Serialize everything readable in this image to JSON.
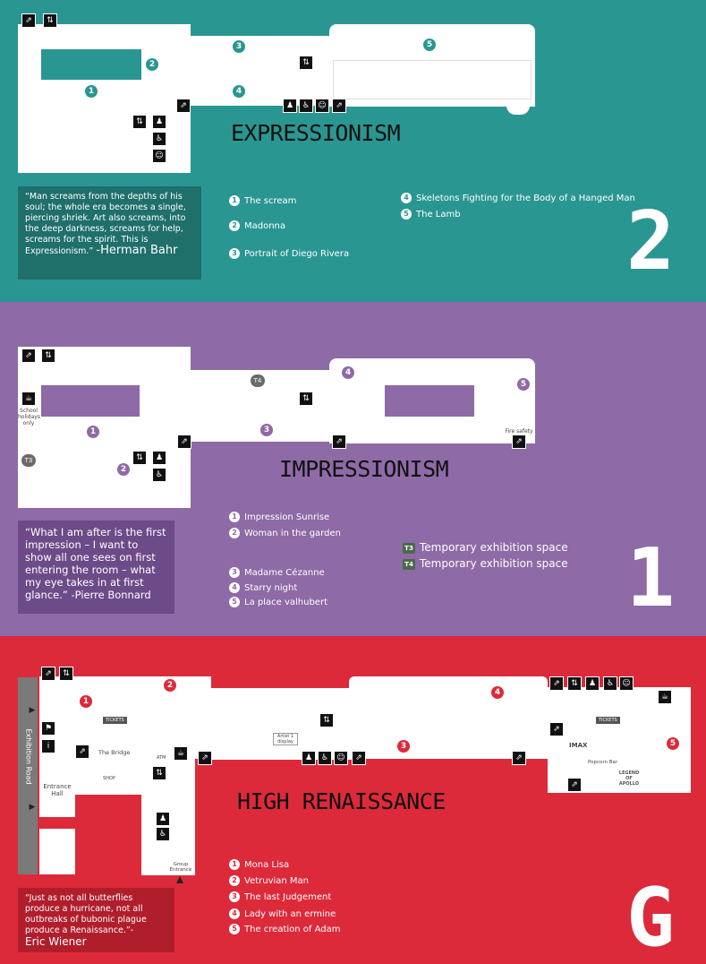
{
  "colors": {
    "teal": "#2a9691",
    "purple": "#8e6aa6",
    "red": "#dc2a3a"
  },
  "floor2": {
    "title": "EXPRESSIONISM",
    "label": "2",
    "quote": "“Man screams from the depths of his soul; the whole era becomes a single, piercing shriek. Art also screams, into the deep darkness, screams for help, screams for the spirit. This is Expressionism.”",
    "quote_author": "-Herman Bahr",
    "artworks": [
      {
        "num": "1",
        "title": "The scream"
      },
      {
        "num": "2",
        "title": "Madonna"
      },
      {
        "num": "3",
        "title": "Portrait of Diego Rivera"
      },
      {
        "num": "4",
        "title": "Skeletons Fighting for the Body of a Hanged Man"
      },
      {
        "num": "5",
        "title": "The Lamb"
      }
    ]
  },
  "floor1": {
    "title": "IMPRESSIONISM",
    "label": "1",
    "quote": "“What I am after is the first impression – I want to show all one sees on first entering the room – what my eye takes in at first glance.” -Pierre Bonnard",
    "artworks": [
      {
        "num": "1",
        "title": "Impression Sunrise"
      },
      {
        "num": "2",
        "title": "Woman in the garden"
      },
      {
        "num": "3",
        "title": "Madame Cézanne"
      },
      {
        "num": "4",
        "title": "Starry night"
      },
      {
        "num": "5",
        "title": "La place valhubert"
      }
    ],
    "temporary": [
      {
        "code": "T3",
        "title": "Temporary exhibition space"
      },
      {
        "code": "T4",
        "title": "Temporary exhibition space"
      }
    ],
    "school_note": "School holidays only",
    "fire_note": "Fire safety"
  },
  "floorG": {
    "title": "HIGH RENAISSANCE",
    "label": "G",
    "quote": "“Just as not all butterflies produce a hurricane, not all outbreaks of bubonic plague produce a Renaissance.”-",
    "quote_author": "Eric Wiener",
    "artworks": [
      {
        "num": "1",
        "title": "Mona Lisa"
      },
      {
        "num": "2",
        "title": "Vetruvian Man"
      },
      {
        "num": "3",
        "title": "The last Judgement"
      },
      {
        "num": "4",
        "title": "Lady with an ermine"
      },
      {
        "num": "5",
        "title": "The creation of Adam"
      }
    ],
    "map_labels": {
      "exhibition_road": "Exhibition Road",
      "entrance_hall": "Entrance Hall",
      "the_bridge": "The Bridge",
      "tickets_left": "TICKETS",
      "tickets_right": "TICKETS",
      "imax": "IMAX",
      "popcorn_bar": "Popcorn Bar",
      "group_entrance": "Group Entrance",
      "shop": "SHOP",
      "atm": "ATM",
      "artist_display": "Artist 1 display",
      "legend_apollo": "LEGEND OF APOLLO"
    }
  }
}
